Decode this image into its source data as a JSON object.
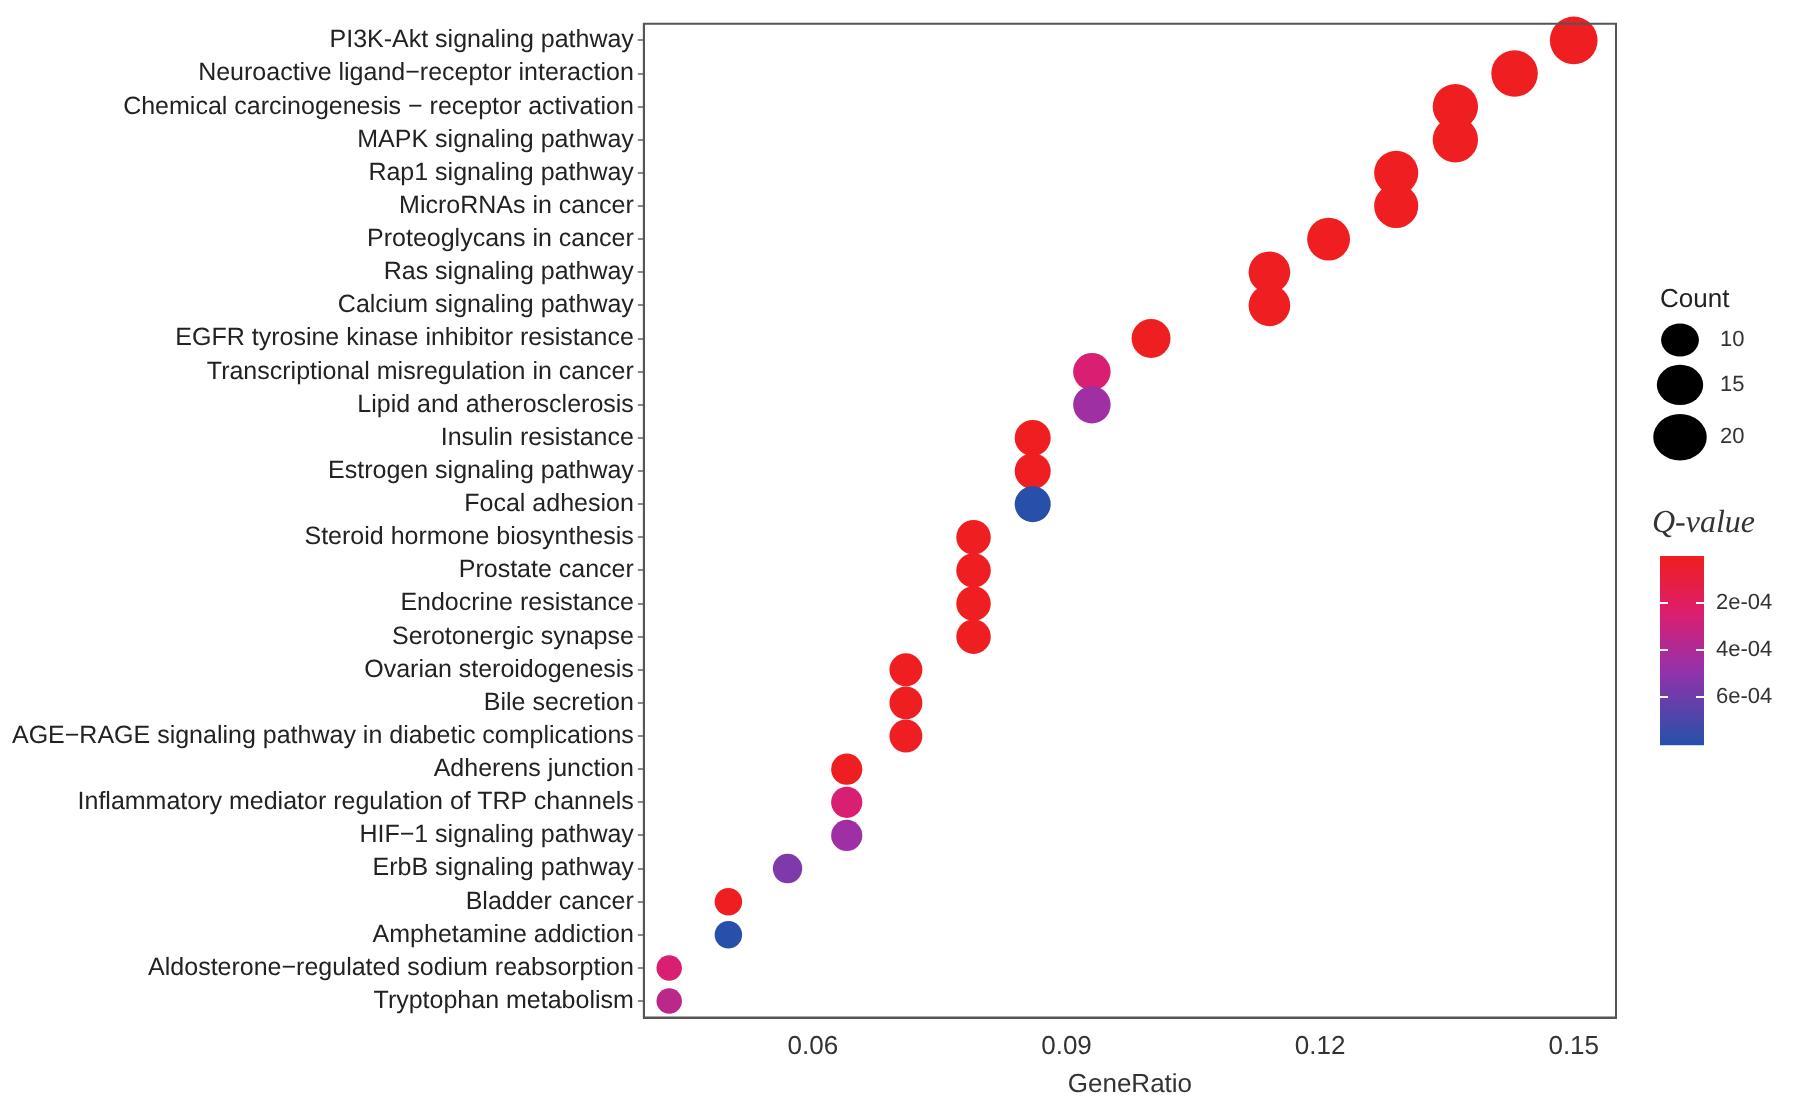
{
  "chart_data": {
    "type": "bubble",
    "orientation": "horizontal",
    "xlabel": "GeneRatio",
    "legend_title": "Count",
    "clabel": "Q-value",
    "categories": [
      "PI3K-Akt signaling pathway",
      "Neuroactive ligand−receptor interaction",
      "Chemical carcinogenesis − receptor activation",
      "MAPK signaling pathway",
      "Rap1 signaling pathway",
      "MicroRNAs in cancer",
      "Proteoglycans in cancer",
      "Ras signaling pathway",
      "Calcium signaling pathway",
      "EGFR tyrosine kinase inhibitor resistance",
      "Transcriptional misregulation in cancer",
      "Lipid and atherosclerosis",
      "Insulin resistance",
      "Estrogen signaling pathway",
      "Focal adhesion",
      "Steroid hormone biosynthesis",
      "Prostate cancer",
      "Endocrine resistance",
      "Serotonergic synapse",
      "Ovarian steroidogenesis",
      "Bile secretion",
      "AGE−RAGE signaling pathway in diabetic complications",
      "Adherens junction",
      "Inflammatory mediator regulation of TRP channels",
      "HIF−1 signaling pathway",
      "ErbB signaling pathway",
      "Bladder cancer",
      "Amphetamine addiction",
      "Aldosterone−regulated sodium reabsorption",
      "Tryptophan metabolism"
    ],
    "values": [
      0.15,
      0.143,
      0.136,
      0.136,
      0.129,
      0.129,
      0.121,
      0.114,
      0.114,
      0.1,
      0.093,
      0.093,
      0.086,
      0.086,
      0.086,
      0.079,
      0.079,
      0.079,
      0.079,
      0.071,
      0.071,
      0.071,
      0.064,
      0.064,
      0.064,
      0.057,
      0.05,
      0.05,
      0.043,
      0.043
    ],
    "sizes": [
      21,
      20,
      19,
      19,
      18,
      18,
      17,
      16,
      16,
      14,
      13,
      13,
      12,
      12,
      12,
      11,
      11,
      11,
      11,
      10,
      10,
      10,
      9,
      9,
      9,
      8,
      7,
      7,
      6,
      6
    ],
    "size_legend": [
      10,
      15,
      20
    ],
    "cvalues": [
      1e-05,
      1e-05,
      1e-05,
      1e-05,
      1e-05,
      1e-05,
      1e-05,
      1e-05,
      1e-05,
      1e-05,
      0.00025,
      0.00045,
      1e-05,
      1e-05,
      0.0008,
      1e-05,
      1e-05,
      1e-05,
      1e-05,
      1e-05,
      1e-05,
      1e-05,
      1e-05,
      0.00025,
      0.00045,
      0.00055,
      1e-05,
      0.0008,
      0.00025,
      0.00035
    ],
    "clim": [
      0,
      0.0008
    ],
    "cticks": [
      {
        "value": 0.0002,
        "label": "2e-04"
      },
      {
        "value": 0.0004,
        "label": "4e-04"
      },
      {
        "value": 0.0006,
        "label": "6e-04"
      }
    ],
    "xlim": [
      0.04,
      0.155
    ],
    "xticks": [
      0.06,
      0.09,
      0.12,
      0.15
    ],
    "grid": false
  }
}
